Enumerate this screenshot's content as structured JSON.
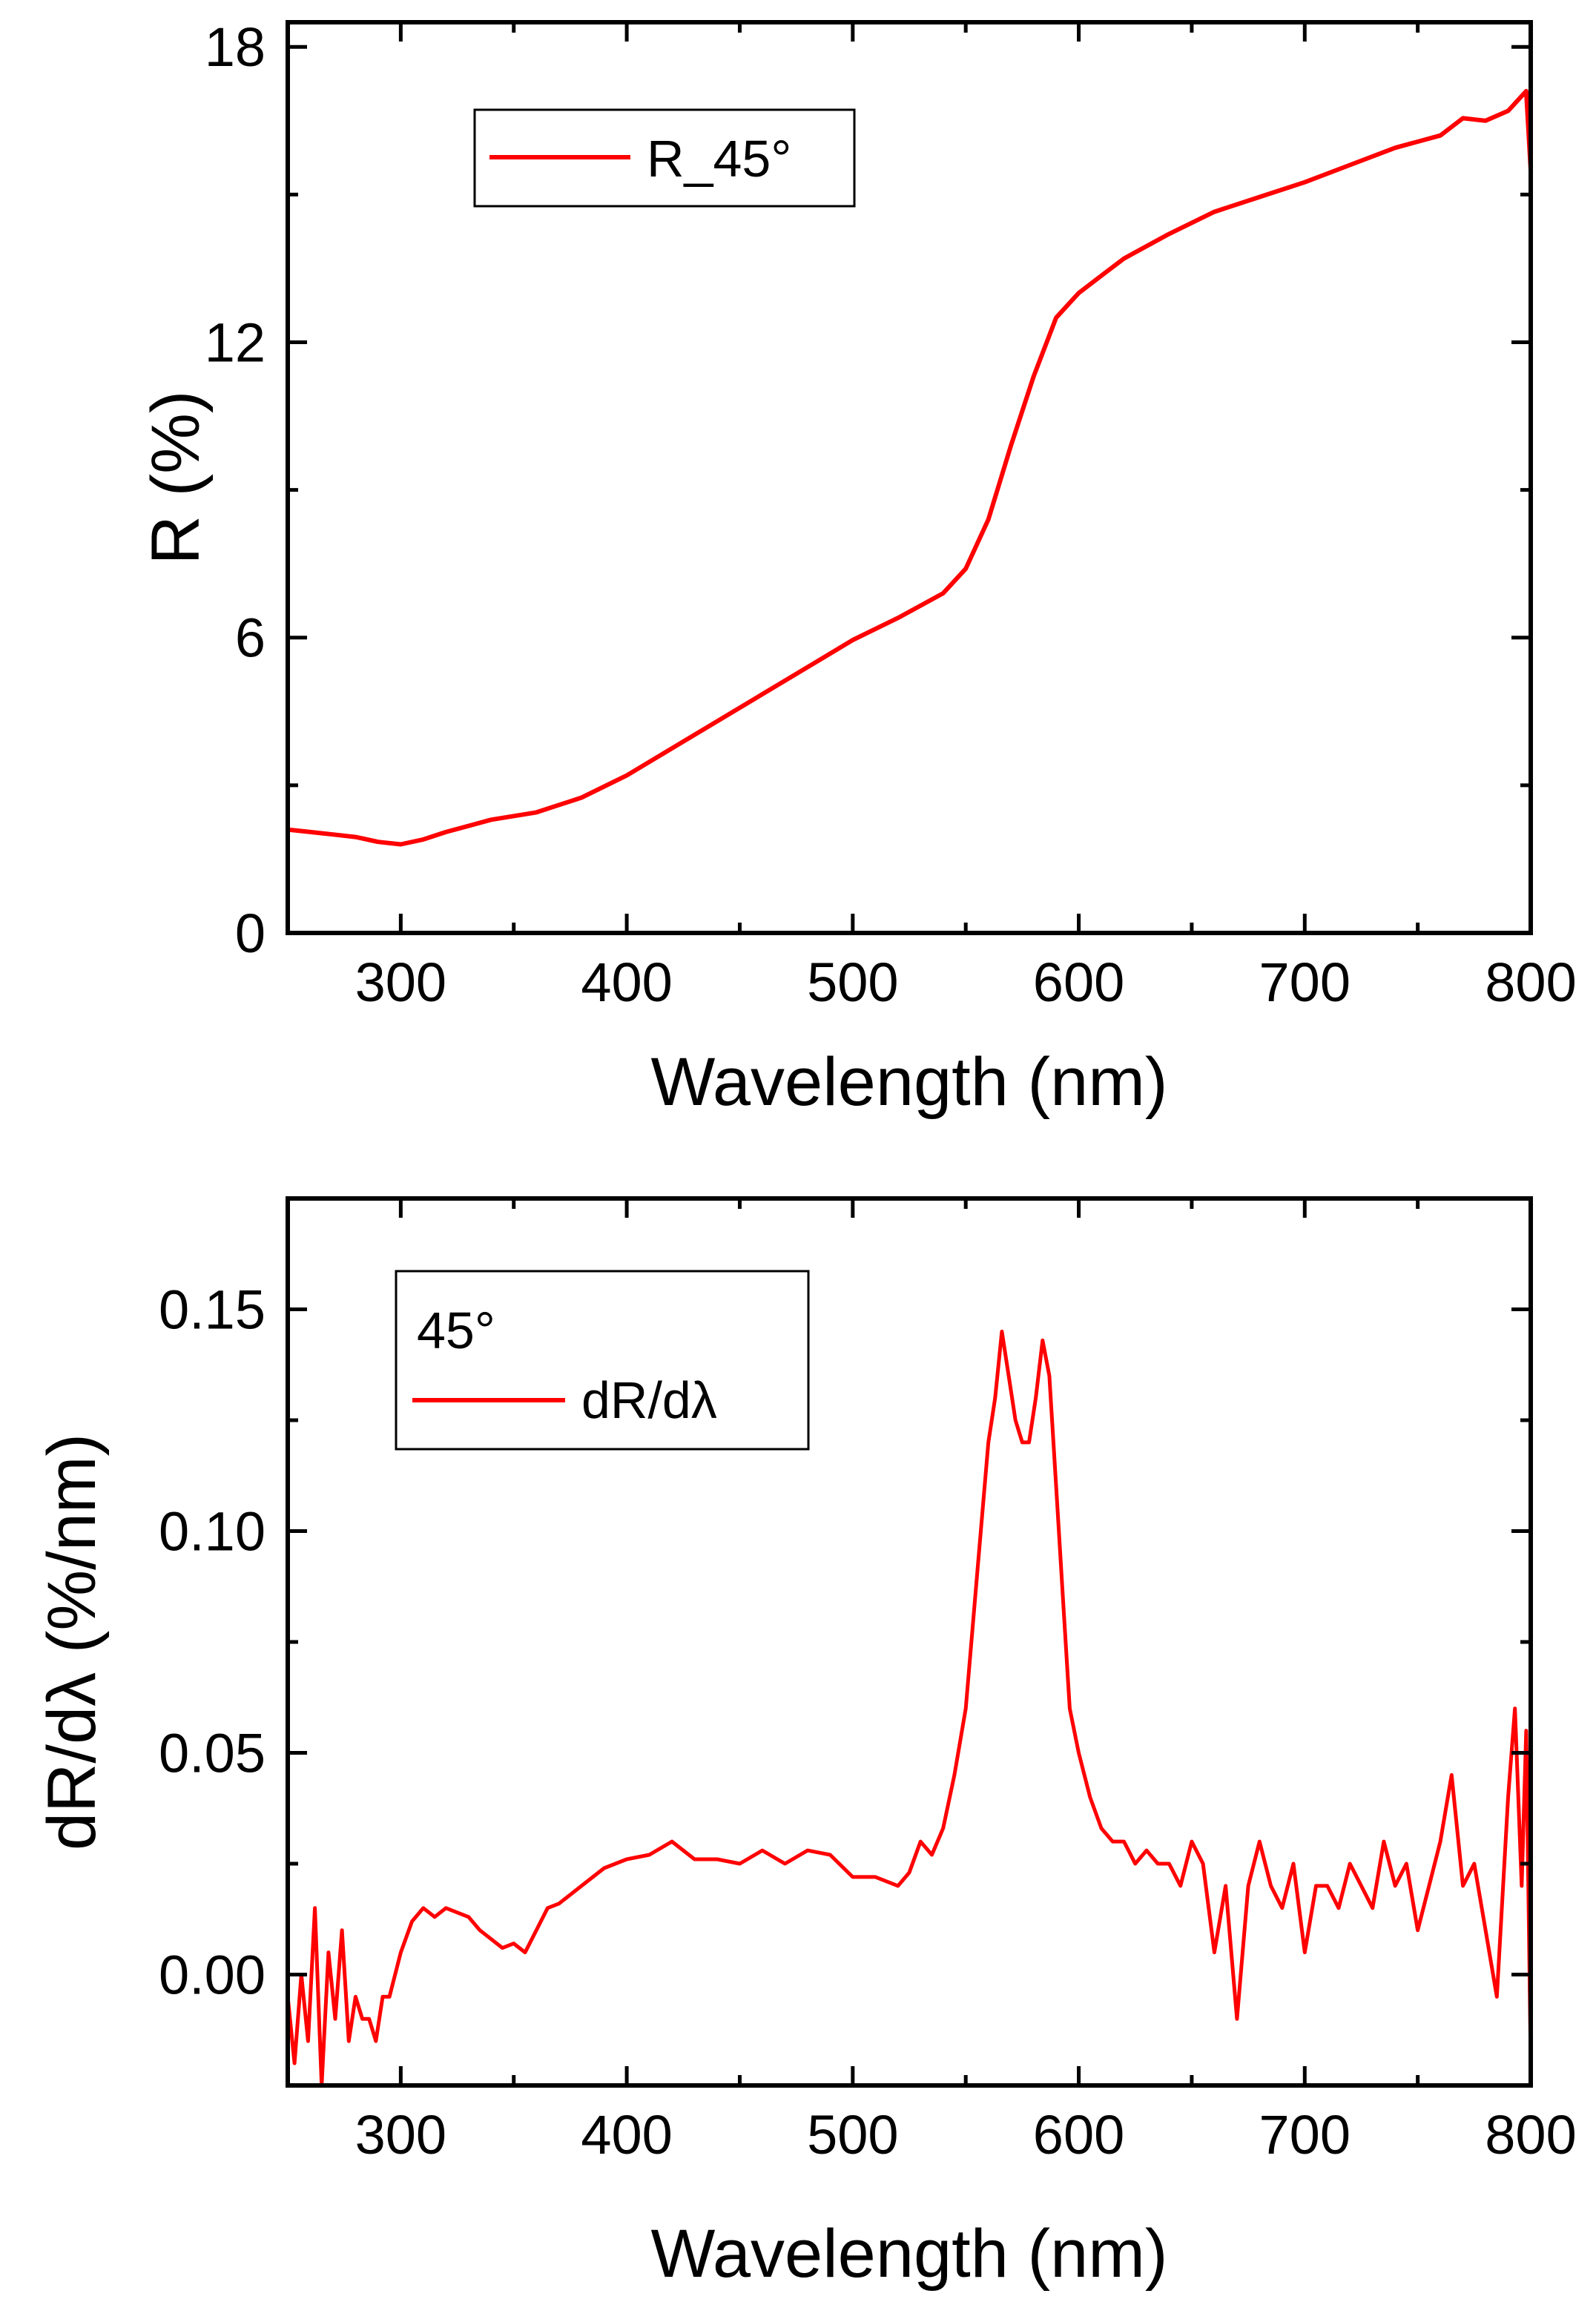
{
  "colors": {
    "series": "#ff0000",
    "axis": "#000000",
    "background": "#ffffff"
  },
  "chart_data": [
    {
      "type": "line",
      "xlabel": "Wavelength (nm)",
      "ylabel": "R (%)",
      "xlim": [
        250,
        800
      ],
      "ylim": [
        0,
        18.5
      ],
      "x_ticks": [
        300,
        400,
        500,
        600,
        700,
        800
      ],
      "x_tick_labels": [
        "300",
        "400",
        "500",
        "600",
        "700",
        "800"
      ],
      "y_ticks": [
        0,
        6,
        12,
        18
      ],
      "y_tick_labels": [
        "0",
        "6",
        "12",
        "18"
      ],
      "legend": {
        "position": "top-left",
        "entries": [
          "R_45°"
        ],
        "note": ""
      },
      "series": [
        {
          "name": "R_45°",
          "x": [
            250,
            260,
            270,
            280,
            290,
            300,
            310,
            320,
            340,
            360,
            380,
            400,
            420,
            440,
            460,
            480,
            500,
            520,
            540,
            550,
            560,
            570,
            580,
            590,
            600,
            610,
            620,
            640,
            660,
            680,
            700,
            720,
            740,
            760,
            770,
            780,
            790,
            798,
            800
          ],
          "y": [
            2.1,
            2.05,
            2.0,
            1.95,
            1.85,
            1.8,
            1.9,
            2.05,
            2.3,
            2.45,
            2.75,
            3.2,
            3.75,
            4.3,
            4.85,
            5.4,
            5.95,
            6.4,
            6.9,
            7.4,
            8.4,
            9.9,
            11.3,
            12.5,
            13.0,
            13.35,
            13.7,
            14.2,
            14.65,
            14.95,
            15.25,
            15.6,
            15.95,
            16.2,
            16.55,
            16.5,
            16.7,
            17.1,
            15.5
          ]
        }
      ]
    },
    {
      "type": "line",
      "xlabel": "Wavelength (nm)",
      "ylabel": "dR/dλ (%/nm)",
      "xlim": [
        250,
        800
      ],
      "ylim": [
        -0.025,
        0.175
      ],
      "x_ticks": [
        300,
        400,
        500,
        600,
        700,
        800
      ],
      "x_tick_labels": [
        "300",
        "400",
        "500",
        "600",
        "700",
        "800"
      ],
      "y_ticks": [
        0.0,
        0.05,
        0.1,
        0.15
      ],
      "y_tick_labels": [
        "0.00",
        "0.05",
        "0.10",
        "0.15"
      ],
      "legend": {
        "position": "top-left",
        "entries": [
          "dR/dλ"
        ],
        "note": "45°"
      },
      "series": [
        {
          "name": "dR/dλ",
          "x": [
            250,
            253,
            256,
            259,
            262,
            265,
            268,
            271,
            274,
            277,
            280,
            283,
            286,
            289,
            292,
            295,
            300,
            305,
            310,
            315,
            320,
            325,
            330,
            335,
            340,
            345,
            350,
            355,
            360,
            365,
            370,
            380,
            390,
            400,
            410,
            420,
            430,
            440,
            450,
            460,
            470,
            480,
            490,
            500,
            510,
            520,
            525,
            530,
            535,
            540,
            545,
            550,
            555,
            560,
            563,
            566,
            569,
            572,
            575,
            578,
            581,
            584,
            587,
            590,
            593,
            596,
            600,
            605,
            610,
            615,
            620,
            625,
            630,
            635,
            640,
            645,
            650,
            655,
            660,
            665,
            670,
            675,
            680,
            685,
            690,
            695,
            700,
            705,
            710,
            715,
            720,
            725,
            730,
            735,
            740,
            745,
            750,
            755,
            760,
            765,
            770,
            775,
            780,
            785,
            790,
            793,
            796,
            798,
            800
          ],
          "y": [
            -0.005,
            -0.02,
            0.0,
            -0.015,
            0.015,
            -0.025,
            0.005,
            -0.01,
            0.01,
            -0.015,
            -0.005,
            -0.01,
            -0.01,
            -0.015,
            -0.005,
            -0.005,
            0.005,
            0.012,
            0.015,
            0.013,
            0.015,
            0.014,
            0.013,
            0.01,
            0.008,
            0.006,
            0.007,
            0.005,
            0.01,
            0.015,
            0.016,
            0.02,
            0.024,
            0.026,
            0.027,
            0.03,
            0.026,
            0.026,
            0.025,
            0.028,
            0.025,
            0.028,
            0.027,
            0.022,
            0.022,
            0.02,
            0.023,
            0.03,
            0.027,
            0.033,
            0.045,
            0.06,
            0.09,
            0.12,
            0.13,
            0.145,
            0.135,
            0.125,
            0.12,
            0.12,
            0.13,
            0.143,
            0.135,
            0.11,
            0.085,
            0.06,
            0.05,
            0.04,
            0.033,
            0.03,
            0.03,
            0.025,
            0.028,
            0.025,
            0.025,
            0.02,
            0.03,
            0.025,
            0.005,
            0.02,
            -0.01,
            0.02,
            0.03,
            0.02,
            0.015,
            0.025,
            0.005,
            0.02,
            0.02,
            0.015,
            0.025,
            0.02,
            0.015,
            0.03,
            0.02,
            0.025,
            0.01,
            0.02,
            0.03,
            0.045,
            0.02,
            0.025,
            0.01,
            -0.005,
            0.04,
            0.06,
            0.02,
            0.055,
            -0.02
          ]
        }
      ]
    }
  ]
}
